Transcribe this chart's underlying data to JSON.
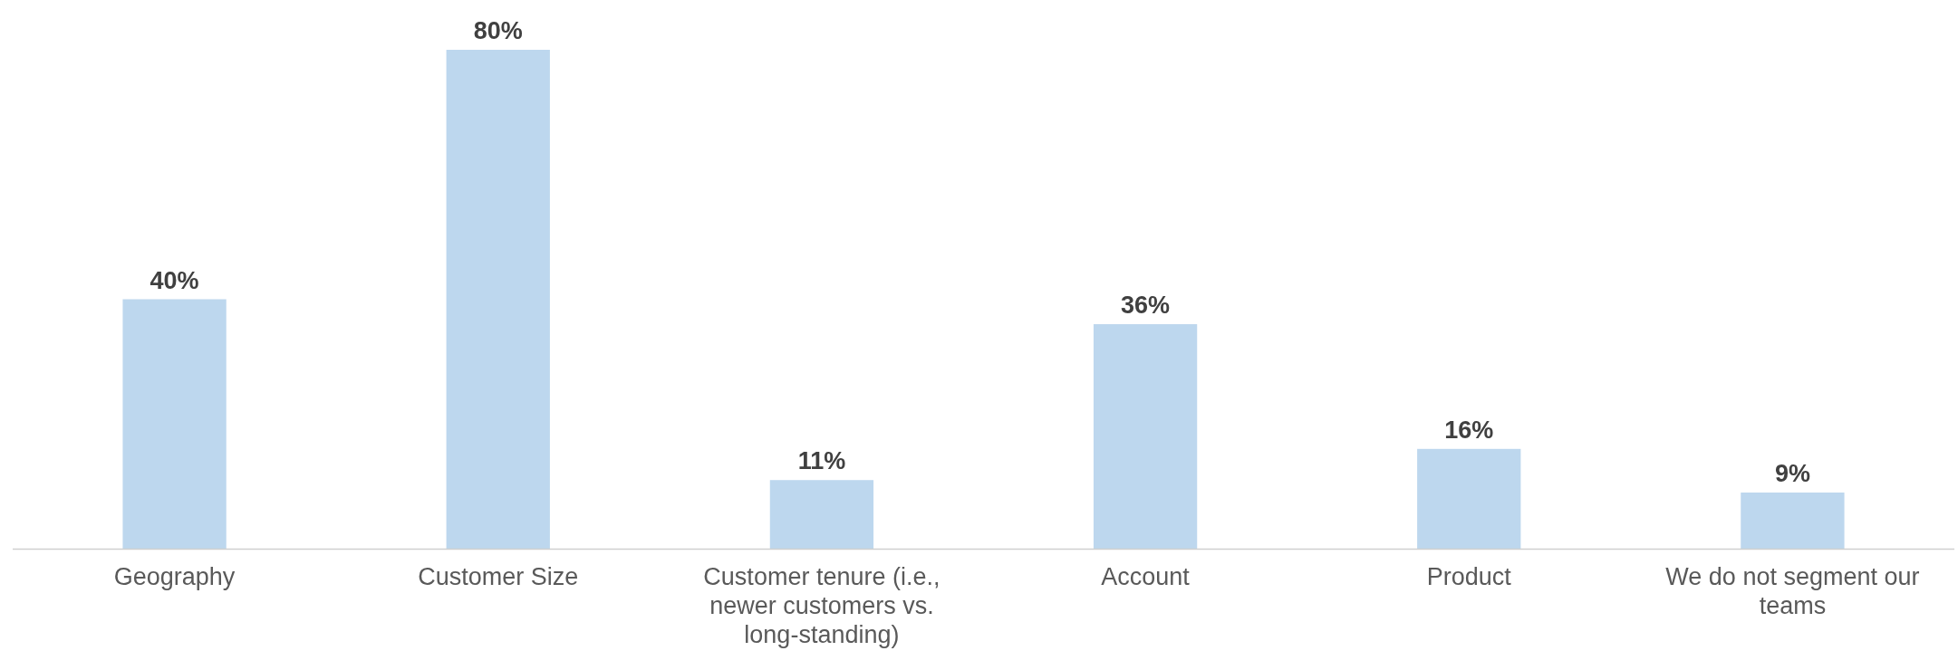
{
  "chart_data": {
    "type": "bar",
    "categories": [
      "Geography",
      "Customer Size",
      "Customer tenure (i.e., newer customers vs. long-standing)",
      "Account",
      "Product",
      "We do not segment our teams"
    ],
    "values": [
      40,
      80,
      11,
      36,
      16,
      9
    ],
    "value_labels": [
      "40%",
      "80%",
      "11%",
      "36%",
      "16%",
      "9%"
    ],
    "color": "#bdd7ee"
  }
}
